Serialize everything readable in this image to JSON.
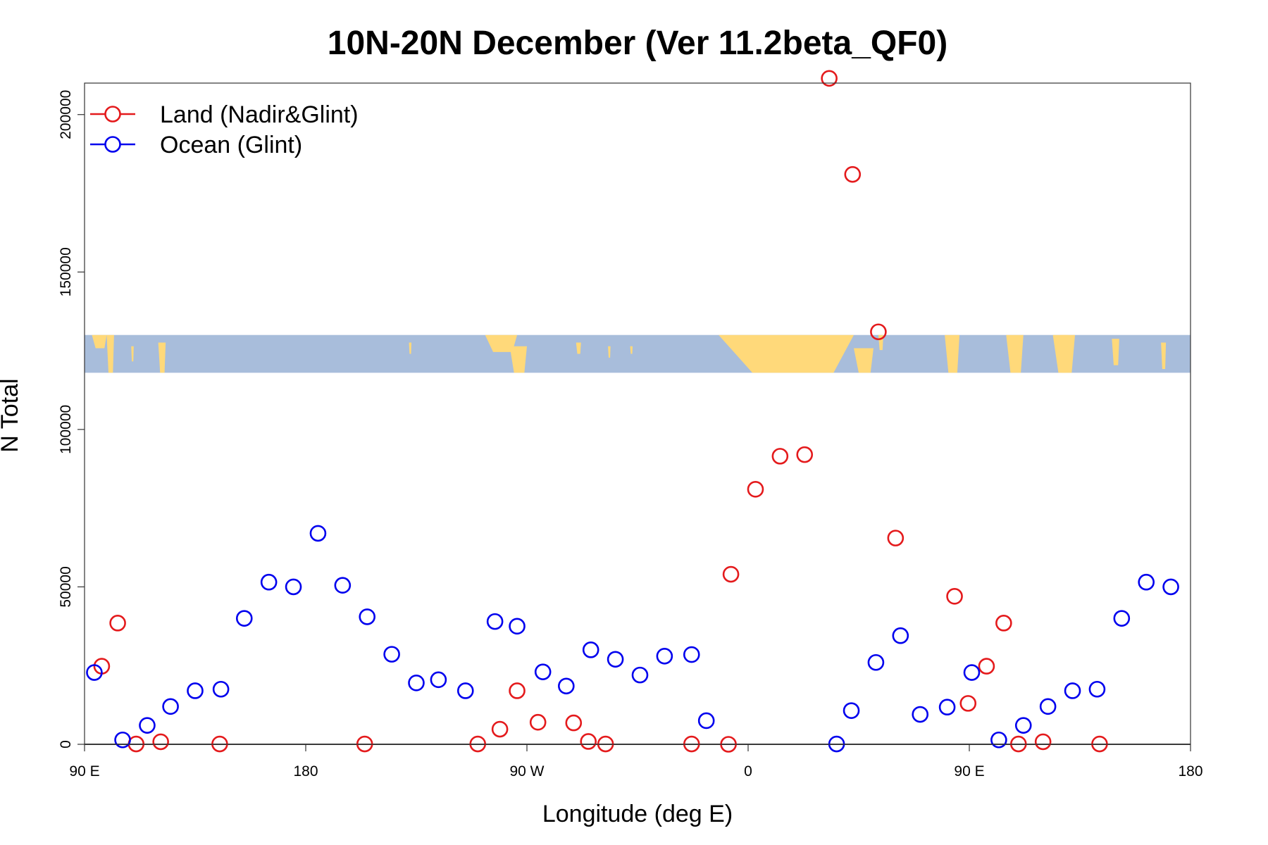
{
  "chart_data": {
    "type": "scatter",
    "title": "10N-20N December (Ver 11.2beta_QF0)",
    "xlabel": "Longitude (deg E)",
    "ylabel": "N Total",
    "xlim": [
      90,
      540
    ],
    "ylim": [
      0,
      210000
    ],
    "x_ticks": [
      {
        "value": 90,
        "label": "90 E"
      },
      {
        "value": 180,
        "label": "180"
      },
      {
        "value": 270,
        "label": "90 W"
      },
      {
        "value": 360,
        "label": "0"
      },
      {
        "value": 450,
        "label": "90 E"
      },
      {
        "value": 540,
        "label": "180"
      }
    ],
    "y_ticks": [
      {
        "value": 0,
        "label": "0"
      },
      {
        "value": 50000,
        "label": "50000"
      },
      {
        "value": 100000,
        "label": "100000"
      },
      {
        "value": 150000,
        "label": "150000"
      },
      {
        "value": 200000,
        "label": "200000"
      }
    ],
    "map_strip": {
      "y_range": [
        118000,
        130000
      ],
      "ocean_color": "#a8bddb",
      "land_color": "#ffd97a"
    },
    "legend": {
      "position": "top-left"
    },
    "series": [
      {
        "name": "Land (Nadir&Glint)",
        "color": "#e41a1c",
        "points": [
          [
            97,
            24800
          ],
          [
            103.5,
            38500
          ],
          [
            111,
            100
          ],
          [
            121,
            800
          ],
          [
            145,
            100
          ],
          [
            204,
            100
          ],
          [
            250,
            100
          ],
          [
            259,
            4800
          ],
          [
            266,
            17000
          ],
          [
            274.5,
            7000
          ],
          [
            289,
            6800
          ],
          [
            295,
            900
          ],
          [
            302,
            100
          ],
          [
            337,
            100
          ],
          [
            353,
            54000
          ],
          [
            352,
            0
          ],
          [
            363,
            81000
          ],
          [
            373,
            91500
          ],
          [
            383,
            92000
          ],
          [
            393,
            211500
          ],
          [
            402.5,
            181000
          ],
          [
            413,
            131000
          ],
          [
            420,
            65500
          ],
          [
            444,
            47000
          ],
          [
            449.5,
            13000
          ],
          [
            457,
            24800
          ],
          [
            464,
            38500
          ],
          [
            470,
            100
          ],
          [
            480,
            800
          ],
          [
            503,
            100
          ]
        ]
      },
      {
        "name": "Ocean (Glint)",
        "color": "#0000ee",
        "points": [
          [
            94,
            22800
          ],
          [
            105.5,
            1400
          ],
          [
            115.5,
            6000
          ],
          [
            125,
            12000
          ],
          [
            135,
            17000
          ],
          [
            145.5,
            17500
          ],
          [
            155,
            40000
          ],
          [
            165,
            51500
          ],
          [
            175,
            50000
          ],
          [
            185,
            67000
          ],
          [
            195,
            50500
          ],
          [
            205,
            40500
          ],
          [
            215,
            28600
          ],
          [
            225,
            19500
          ],
          [
            234,
            20500
          ],
          [
            245,
            17000
          ],
          [
            257,
            39000
          ],
          [
            266,
            37500
          ],
          [
            276.5,
            23000
          ],
          [
            286,
            18500
          ],
          [
            296,
            30000
          ],
          [
            306,
            27000
          ],
          [
            316,
            22000
          ],
          [
            326,
            28000
          ],
          [
            337,
            28500
          ],
          [
            343,
            7500
          ],
          [
            396,
            100
          ],
          [
            402,
            10700
          ],
          [
            412,
            26000
          ],
          [
            422,
            34500
          ],
          [
            430,
            9500
          ],
          [
            441,
            11800
          ],
          [
            451,
            22800
          ],
          [
            462,
            1400
          ],
          [
            472,
            6000
          ],
          [
            482,
            12000
          ],
          [
            492,
            17000
          ],
          [
            502,
            17500
          ],
          [
            512,
            40000
          ],
          [
            522,
            51500
          ],
          [
            532,
            50000
          ]
        ]
      }
    ]
  }
}
